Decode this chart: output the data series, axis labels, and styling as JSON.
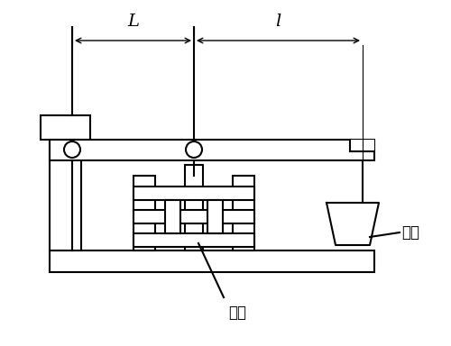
{
  "bg_color": "#ffffff",
  "line_color": "#000000",
  "lw": 1.5,
  "label_shijian": "试件",
  "label_peizong": "配重",
  "label_L": "L",
  "label_l": "l",
  "font_size": 12
}
